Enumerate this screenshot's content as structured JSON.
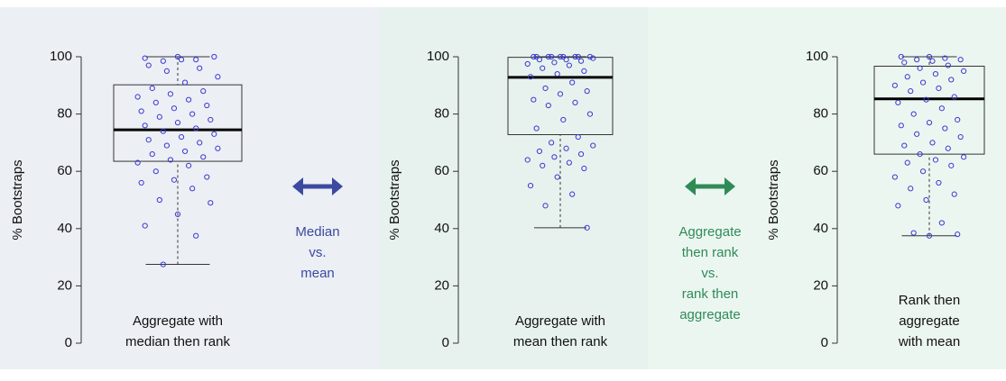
{
  "chart_data": [
    {
      "type": "box",
      "ylabel": "% Bootstraps",
      "caption": [
        "Aggregate with",
        "median then rank"
      ],
      "ylim": [
        0,
        100
      ],
      "yticks": [
        0,
        20,
        40,
        60,
        80,
        100
      ],
      "whisker_low": 27.5,
      "q1": 63.5,
      "median": 74.5,
      "q3": 90.2,
      "whisker_high": 100,
      "point_color": "#3a3ad0",
      "points": [
        100,
        99.5,
        99,
        98.5,
        100,
        99,
        97,
        96,
        95,
        93,
        91,
        89,
        88,
        87,
        86,
        85,
        84,
        83,
        82,
        81,
        80,
        79,
        78,
        77,
        76,
        75,
        74,
        73,
        72,
        71,
        70,
        69,
        68,
        67,
        66,
        65,
        64,
        63,
        62,
        60,
        58,
        57,
        56,
        54,
        50,
        49,
        45,
        41,
        37.5,
        27.5
      ]
    },
    {
      "type": "box",
      "ylabel": "% Bootstraps",
      "caption": [
        "Aggregate with",
        "mean then rank"
      ],
      "ylim": [
        0,
        100
      ],
      "yticks": [
        0,
        20,
        40,
        60,
        80,
        100
      ],
      "whisker_low": 40.3,
      "q1": 72.8,
      "median": 92.8,
      "q3": 99.8,
      "whisker_high": 100,
      "point_color": "#3a3ad0",
      "points": [
        100,
        100,
        100,
        100,
        100,
        100,
        100,
        100,
        100,
        99.5,
        99,
        99,
        98.5,
        98,
        97.5,
        97,
        96,
        95,
        94,
        93,
        91,
        89,
        88,
        87,
        85,
        84,
        83,
        80,
        78,
        75,
        72,
        70,
        69,
        68,
        67,
        66,
        65,
        64,
        63,
        62,
        61,
        58,
        55,
        52,
        48,
        40.3
      ]
    },
    {
      "type": "box",
      "ylabel": "% Bootstraps",
      "caption": [
        "Rank then",
        "aggregate",
        "with mean"
      ],
      "ylim": [
        0,
        100
      ],
      "yticks": [
        0,
        20,
        40,
        60,
        80,
        100
      ],
      "whisker_low": 37.5,
      "q1": 66,
      "median": 85.3,
      "q3": 96.7,
      "whisker_high": 100,
      "point_color": "#3a3ad0",
      "points": [
        100,
        100,
        99.5,
        99,
        99,
        98.5,
        98,
        97,
        96,
        95,
        94,
        93,
        92,
        91,
        90,
        89,
        88,
        86,
        85,
        84,
        82,
        80,
        78,
        77,
        76,
        75,
        73,
        72,
        70,
        69,
        68,
        66,
        65,
        64,
        63,
        62,
        60,
        58,
        56,
        54,
        52,
        50,
        48,
        42,
        38.5,
        38,
        37.5
      ]
    }
  ],
  "comparisons": [
    {
      "lines": [
        "Median",
        "vs.",
        "mean"
      ],
      "color": "#3b4aa0"
    },
    {
      "lines": [
        "Aggregate",
        "then rank",
        "vs.",
        "rank then",
        "aggregate"
      ],
      "color": "#2e8b57"
    }
  ]
}
